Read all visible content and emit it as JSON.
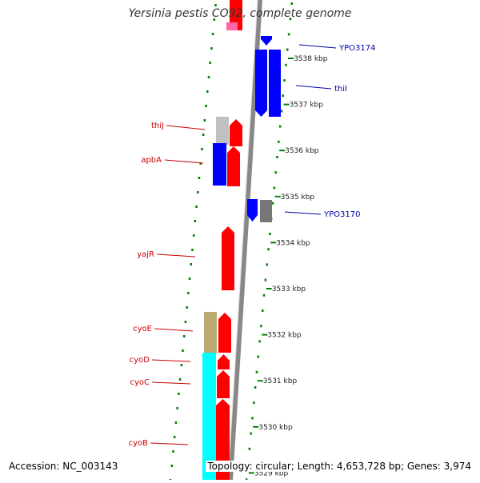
{
  "title": "Yersinia pestis CO92, complete genome",
  "footer": {
    "accession": "Accession: NC_003143",
    "summary": "Topology: circular; Length: 4,653,728 bp; Genes: 3,974"
  },
  "colors": {
    "forward": "#ff0000",
    "reverse": "#0000ff",
    "gray": "#777777",
    "cyan": "#00ffff",
    "olive": "#b8aa70",
    "pink": "#ff66aa",
    "tick": "#008000",
    "label_red": "#cc0000",
    "label_blue": "#0000aa"
  },
  "ruler": {
    "unit": "kbp",
    "ticks": [
      {
        "kbp": 3538,
        "label": "3538 kbp"
      },
      {
        "kbp": 3537,
        "label": "3537 kbp"
      },
      {
        "kbp": 3536,
        "label": "3536 kbp"
      },
      {
        "kbp": 3535,
        "label": "3535 kbp"
      },
      {
        "kbp": 3534,
        "label": "3534 kbp"
      },
      {
        "kbp": 3533,
        "label": "3533 kbp"
      },
      {
        "kbp": 3532,
        "label": "3532 kbp"
      },
      {
        "kbp": 3531,
        "label": "3531 kbp"
      },
      {
        "kbp": 3530,
        "label": "3530 kbp"
      },
      {
        "kbp": 3529,
        "label": "3529 kbp"
      }
    ]
  },
  "gene_labels": [
    {
      "name": "YPO3174",
      "side": "right",
      "color": "blue"
    },
    {
      "name": "thiI",
      "side": "right",
      "color": "blue"
    },
    {
      "name": "thiJ",
      "side": "left",
      "color": "red"
    },
    {
      "name": "apbA",
      "side": "left",
      "color": "red"
    },
    {
      "name": "YPO3170",
      "side": "right",
      "color": "blue"
    },
    {
      "name": "yajR",
      "side": "left",
      "color": "red"
    },
    {
      "name": "cyoE",
      "side": "left",
      "color": "red"
    },
    {
      "name": "cyoD",
      "side": "left",
      "color": "red"
    },
    {
      "name": "cyoC",
      "side": "left",
      "color": "red"
    },
    {
      "name": "cyoB",
      "side": "left",
      "color": "red"
    }
  ]
}
